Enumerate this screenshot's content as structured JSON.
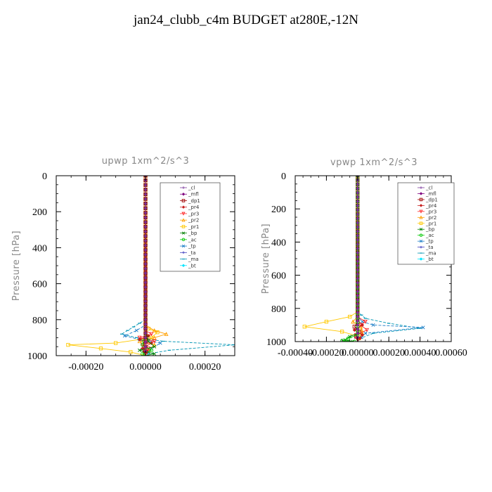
{
  "figure_title": "jan24_clubb_c4m  BUDGET at280E,-12N",
  "legend_entries": [
    {
      "name": "_cl",
      "color": "#7f3f9f",
      "marker": "+"
    },
    {
      "name": "_mfl",
      "color": "#7f007f",
      "marker": "diamond"
    },
    {
      "name": "_dp1",
      "color": "#9f0000",
      "marker": "square"
    },
    {
      "name": "_pr4",
      "color": "#c81e1e",
      "marker": "diamond"
    },
    {
      "name": "_pr3",
      "color": "#ff2a2a",
      "marker": "triangle-down"
    },
    {
      "name": "_pr2",
      "color": "#ff9f00",
      "marker": "triangle"
    },
    {
      "name": "_pr1",
      "color": "#ffc800",
      "marker": "square"
    },
    {
      "name": "_bp",
      "color": "#007f00",
      "marker": "x"
    },
    {
      "name": "_ac",
      "color": "#00c800",
      "marker": "circle"
    },
    {
      "name": "_tp",
      "color": "#1e7fc8",
      "marker": "x"
    },
    {
      "name": "_ta",
      "color": "#3f3fbf",
      "marker": "+"
    },
    {
      "name": "_ma",
      "color": "#0095b4",
      "marker": "dash"
    },
    {
      "name": "_bt",
      "color": "#00e5ff",
      "marker": "diamond"
    }
  ],
  "chart_data": [
    {
      "type": "line",
      "title": "upwp   1xm^2/s^3",
      "ylabel": "Pressure [hPa]",
      "xlabel": "",
      "xlim": [
        -0.0003,
        0.0003
      ],
      "ylim": [
        1000,
        0
      ],
      "xticks": [
        -0.0002,
        0.0,
        0.0002
      ],
      "xtick_labels": [
        "-0.00020",
        "0.00000",
        "0.00020"
      ],
      "yticks": [
        0,
        200,
        400,
        600,
        800,
        1000
      ],
      "ytick_labels": [
        "0",
        "200",
        "400",
        "600",
        "800",
        "1000"
      ],
      "grid": false,
      "legend_placement": "top-right",
      "series": [
        {
          "name": "_pr1",
          "x": [
            0,
            0,
            1e-05,
            4e-05,
            2e-05,
            -0.0001,
            -0.00026,
            -0.00015,
            -5e-05,
            0
          ],
          "y": [
            0,
            820,
            850,
            870,
            900,
            930,
            940,
            960,
            980,
            1000
          ]
        },
        {
          "name": "_pr2",
          "x": [
            0,
            0,
            3e-05,
            7e-05,
            3e-05,
            -2e-05,
            3e-05,
            1e-05,
            0
          ],
          "y": [
            0,
            830,
            860,
            880,
            900,
            920,
            940,
            970,
            1000
          ]
        },
        {
          "name": "_ma",
          "x": [
            0,
            0,
            -4e-05,
            -8e-05,
            -3e-05,
            6e-05,
            0.0003,
            8e-05,
            1e-05,
            0
          ],
          "y": [
            0,
            800,
            840,
            880,
            900,
            920,
            940,
            970,
            990,
            1000
          ]
        },
        {
          "name": "_tp",
          "x": [
            0,
            0,
            -3e-05,
            -7e-05,
            -2e-05,
            5e-05,
            2e-05,
            0
          ],
          "y": [
            0,
            830,
            860,
            890,
            910,
            930,
            960,
            1000
          ]
        },
        {
          "name": "_pr3",
          "x": [
            0,
            0,
            2e-05,
            -2e-05,
            3e-05,
            -1e-05,
            1e-05,
            0
          ],
          "y": [
            0,
            860,
            880,
            900,
            920,
            940,
            960,
            1000
          ]
        },
        {
          "name": "_pr4",
          "x": [
            0,
            0,
            1e-05,
            -2e-05,
            2e-05,
            -1e-05,
            0
          ],
          "y": [
            0,
            870,
            890,
            910,
            930,
            960,
            1000
          ]
        },
        {
          "name": "_bp",
          "x": [
            0,
            0,
            1e-05,
            3e-05,
            -2e-05,
            3e-05,
            0
          ],
          "y": [
            0,
            880,
            920,
            950,
            970,
            990,
            1000
          ]
        },
        {
          "name": "_ac",
          "x": [
            0,
            0,
            -1e-05,
            2e-05,
            -1e-05,
            0
          ],
          "y": [
            0,
            900,
            940,
            970,
            990,
            1000
          ]
        },
        {
          "name": "_mfl",
          "x": [
            0,
            0,
            0
          ],
          "y": [
            0,
            800,
            1000
          ]
        },
        {
          "name": "_dp1",
          "x": [
            0,
            0,
            0
          ],
          "y": [
            0,
            800,
            1000
          ]
        },
        {
          "name": "_cl",
          "x": [
            0,
            0,
            0
          ],
          "y": [
            0,
            800,
            1000
          ]
        }
      ]
    },
    {
      "type": "line",
      "title": "vpwp   1xm^2/s^3",
      "ylabel": "Pressure [hPa]",
      "xlabel": "",
      "xlim": [
        -0.0004,
        0.0006
      ],
      "ylim": [
        1000,
        0
      ],
      "xticks": [
        -0.0004,
        -0.0002,
        0.0,
        0.0002,
        0.0004,
        0.0006
      ],
      "xtick_labels": [
        "-0.00040",
        "-0.00020",
        "0.00000",
        "0.00020",
        "0.00040",
        "0.00060"
      ],
      "yticks": [
        0,
        200,
        400,
        600,
        800,
        1000
      ],
      "ytick_labels": [
        "0",
        "200",
        "400",
        "600",
        "800",
        "1000"
      ],
      "grid": false,
      "legend_placement": "top-right",
      "series": [
        {
          "name": "_pr1",
          "x": [
            0,
            0,
            -5e-05,
            -0.0002,
            -0.00034,
            -0.0001,
            1e-05,
            0
          ],
          "y": [
            0,
            820,
            850,
            880,
            910,
            940,
            970,
            1000
          ]
        },
        {
          "name": "_pr2",
          "x": [
            0,
            0,
            -3e-05,
            2e-05,
            3e-05,
            1e-05,
            0
          ],
          "y": [
            0,
            850,
            880,
            910,
            950,
            980,
            1000
          ]
        },
        {
          "name": "_ma",
          "x": [
            0,
            0,
            5e-05,
            0.0002,
            0.0004,
            0.0001,
            2e-05,
            0
          ],
          "y": [
            0,
            820,
            860,
            890,
            920,
            950,
            980,
            1000
          ]
        },
        {
          "name": "_tp",
          "x": [
            0,
            0,
            3e-05,
            0.0001,
            0.00042,
            5e-05,
            0
          ],
          "y": [
            0,
            850,
            880,
            900,
            915,
            950,
            1000
          ]
        },
        {
          "name": "_pr3",
          "x": [
            0,
            0,
            5e-05,
            2e-05,
            6e-05,
            -1e-05,
            0
          ],
          "y": [
            0,
            850,
            880,
            900,
            930,
            960,
            1000
          ]
        },
        {
          "name": "_pr4",
          "x": [
            0,
            0,
            3e-05,
            -2e-05,
            3e-05,
            0
          ],
          "y": [
            0,
            870,
            900,
            930,
            960,
            1000
          ]
        },
        {
          "name": "_dp1",
          "x": [
            0,
            0,
            -2e-05,
            1e-05,
            -1e-05,
            0
          ],
          "y": [
            0,
            880,
            910,
            940,
            970,
            1000
          ]
        },
        {
          "name": "_bp",
          "x": [
            0,
            0,
            -5e-05,
            -8e-05,
            -3e-05,
            0
          ],
          "y": [
            0,
            950,
            970,
            990,
            1000,
            1000
          ]
        },
        {
          "name": "_ac",
          "x": [
            0,
            0,
            -6e-05,
            -0.0001,
            -2e-05,
            0
          ],
          "y": [
            0,
            960,
            980,
            995,
            1000,
            1000
          ]
        },
        {
          "name": "_mfl",
          "x": [
            0,
            0,
            0
          ],
          "y": [
            0,
            800,
            1000
          ]
        },
        {
          "name": "_cl",
          "x": [
            0,
            0,
            0
          ],
          "y": [
            0,
            800,
            1000
          ]
        }
      ]
    }
  ]
}
